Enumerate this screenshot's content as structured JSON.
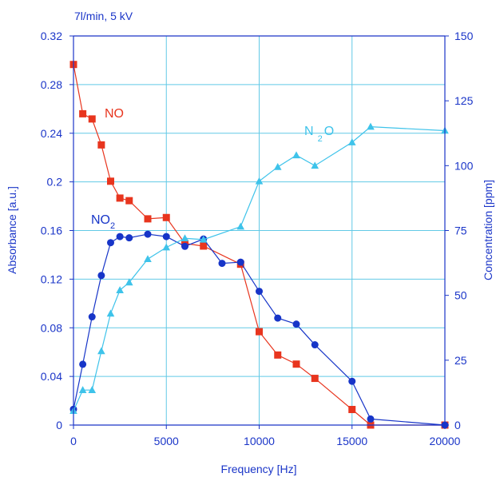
{
  "chart_data": {
    "type": "line",
    "title": "7l/min, 5 kV",
    "xlabel": "Frequency [Hz]",
    "ylabel_left": "Absorbance [a.u.]",
    "ylabel_right": "Concentration [ppm]",
    "xlim": [
      0,
      20000
    ],
    "ylim_left": [
      0,
      0.32
    ],
    "ylim_right": [
      0,
      150
    ],
    "x_ticks": [
      0,
      5000,
      10000,
      15000,
      20000
    ],
    "y_left_ticks": [
      "0",
      "0.04",
      "0.08",
      "0.12",
      "0.16",
      "0.2",
      "0.24",
      "0.28",
      "0.32"
    ],
    "y_right_ticks": [
      "0",
      "25",
      "50",
      "75",
      "100",
      "125",
      "150"
    ],
    "grid": true,
    "colors": {
      "axis": "#1a35c8",
      "grid": "#62c9e6",
      "NO": "#e8351e",
      "NO2": "#1735c8",
      "N2O": "#3ec3ea"
    },
    "series": [
      {
        "name": "NO",
        "axis": "right",
        "marker": "square",
        "x": [
          0,
          500,
          1000,
          1500,
          2000,
          2500,
          3000,
          4000,
          5000,
          6000,
          7000,
          9000,
          10000,
          11000,
          12000,
          13000,
          15000,
          16000,
          20000
        ],
        "y": [
          139,
          120,
          118,
          108,
          94,
          87.5,
          86.5,
          79.5,
          80,
          70,
          69,
          62,
          36,
          27,
          23.5,
          18,
          6,
          0,
          0
        ]
      },
      {
        "name": "NO2",
        "axis": "left",
        "marker": "circle",
        "x": [
          0,
          500,
          1000,
          1500,
          2000,
          2500,
          3000,
          4000,
          5000,
          6000,
          7000,
          8000,
          9000,
          10000,
          11000,
          12000,
          13000,
          15000,
          16000,
          20000
        ],
        "y": [
          0.013,
          0.05,
          0.089,
          0.123,
          0.15,
          0.155,
          0.154,
          0.157,
          0.155,
          0.147,
          0.153,
          0.133,
          0.134,
          0.11,
          0.088,
          0.083,
          0.066,
          0.036,
          0.005,
          0
        ]
      },
      {
        "name": "N2O",
        "axis": "right",
        "marker": "triangle",
        "x": [
          0,
          500,
          1000,
          1500,
          2000,
          2500,
          3000,
          4000,
          5000,
          6000,
          7000,
          9000,
          10000,
          11000,
          12000,
          13000,
          15000,
          16000,
          20000
        ],
        "y": [
          5.5,
          13.5,
          13.5,
          28.5,
          43,
          52,
          55,
          64,
          68.5,
          72,
          71.5,
          76.5,
          94,
          99.5,
          104,
          100,
          109,
          115,
          113.5
        ]
      }
    ],
    "labels": [
      {
        "name": "NO",
        "text": "NO"
      },
      {
        "name": "NO2",
        "text": "NO",
        "subscript": "2"
      },
      {
        "name": "N2O",
        "text": "N",
        "subscript": "2",
        "tail": "O"
      }
    ]
  }
}
